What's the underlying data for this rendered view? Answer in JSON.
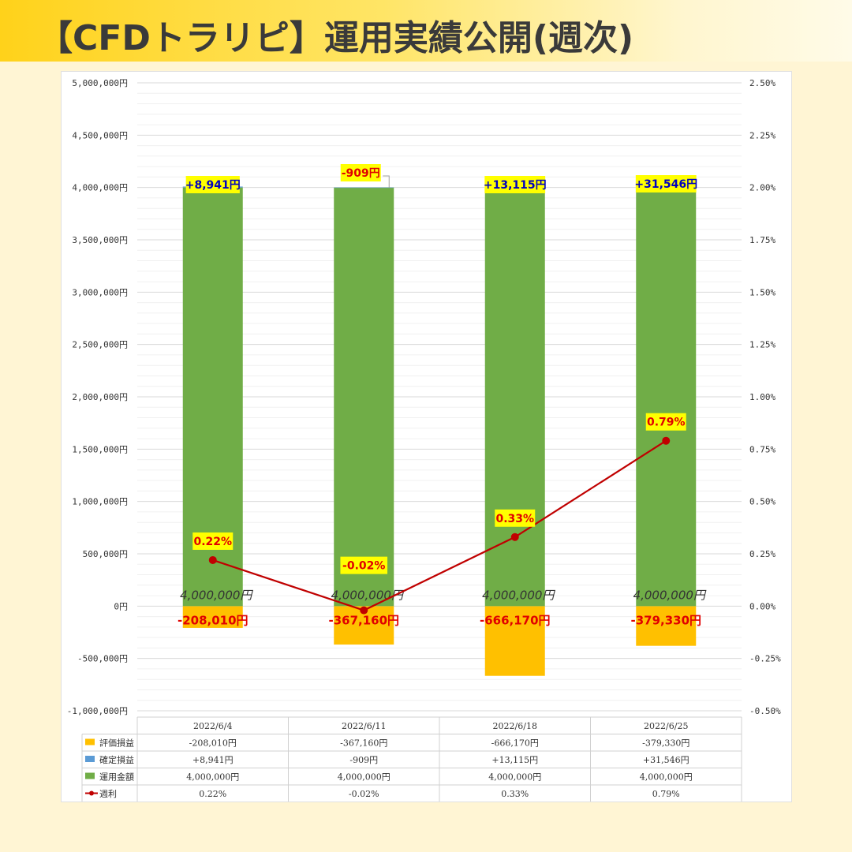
{
  "title": "【CFDトラリピ】運用実績公開(週次)",
  "colors": {
    "hyoka": "#ffc000",
    "kakutei": "#5b9bd5",
    "unyo": "#70ad47",
    "shuri": "#c00000",
    "highlight": "#ffff00",
    "blue_text": "#0000c0",
    "red_text": "#e00000"
  },
  "chart_data": {
    "type": "bar",
    "stacked": true,
    "categories": [
      "2022/6/4",
      "2022/6/11",
      "2022/6/18",
      "2022/6/25"
    ],
    "y_left": {
      "min": -1000000,
      "max": 5000000,
      "step": 500000,
      "tick_labels": [
        "-1,000,000円",
        "-500,000円",
        "0円",
        "500,000円",
        "1,000,000円",
        "1,500,000円",
        "2,000,000円",
        "2,500,000円",
        "3,000,000円",
        "3,500,000円",
        "4,000,000円",
        "4,500,000円",
        "5,000,000円"
      ]
    },
    "y_right": {
      "min": -0.5,
      "max": 2.5,
      "step": 0.25,
      "tick_labels": [
        "-0.50%",
        "-0.25%",
        "0.00%",
        "0.25%",
        "0.50%",
        "0.75%",
        "1.00%",
        "1.25%",
        "1.50%",
        "1.75%",
        "2.00%",
        "2.25%",
        "2.50%"
      ]
    },
    "series": [
      {
        "name": "評価損益",
        "type": "bar",
        "values": [
          -208010,
          -367160,
          -666170,
          -379330
        ],
        "labels": [
          "-208,010円",
          "-367,160円",
          "-666,170円",
          "-379,330円"
        ],
        "table": [
          "-208,010円",
          "-367,160円",
          "-666,170円",
          "-379,330円"
        ]
      },
      {
        "name": "確定損益",
        "type": "bar",
        "values": [
          8941,
          -909,
          13115,
          31546
        ],
        "labels": [
          "+8,941円",
          "-909円",
          "+13,115円",
          "+31,546円"
        ],
        "table": [
          "+8,941円",
          "-909円",
          "+13,115円",
          "+31,546円"
        ]
      },
      {
        "name": "運用金額",
        "type": "bar",
        "values": [
          4000000,
          4000000,
          4000000,
          4000000
        ],
        "labels": [
          "4,000,000円",
          "4,000,000円",
          "4,000,000円",
          "4,000,000円"
        ],
        "table": [
          "4,000,000円",
          "4,000,000円",
          "4,000,000円",
          "4,000,000円"
        ]
      },
      {
        "name": "週利",
        "type": "line",
        "axis": "right",
        "values": [
          0.22,
          -0.02,
          0.33,
          0.79
        ],
        "labels": [
          "0.22%",
          "-0.02%",
          "0.33%",
          "0.79%"
        ],
        "table": [
          "0.22%",
          "-0.02%",
          "0.33%",
          "0.79%"
        ]
      }
    ],
    "grid": true,
    "legend": "data-table"
  }
}
